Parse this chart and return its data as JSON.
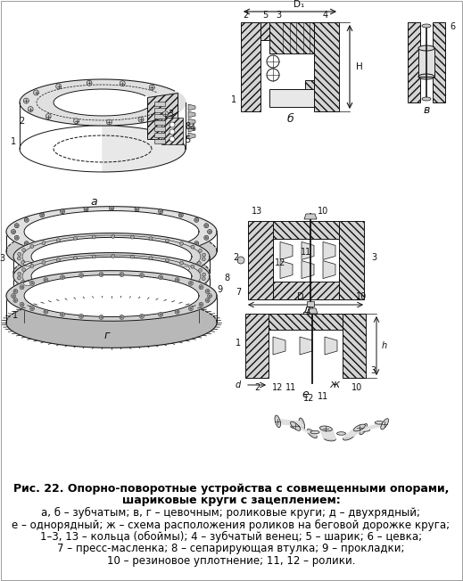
{
  "title_line1": "Рис. 22. Опорно-поворотные устройства с совмещенными опорами,",
  "title_line2": "шариковые круги с зацеплением:",
  "caption_lines": [
    "а, б – зубчатым; в, г – цевочным; роликовые круги; д – двухрядный;",
    "е – однорядный; ж – схема расположения роликов на беговой дорожке круга;",
    "1–3, 13 – кольца (обоймы); 4 – зубчатый венец; 5 – шарик; 6 – цевка;",
    "7 – пресс-масленка; 8 – сепарирующая втулка; 9 – прокладки;",
    "10 – резиновое уплотнение; 11, 12 – ролики."
  ],
  "bg_color": "#ffffff",
  "fig_width": 5.19,
  "fig_height": 6.52,
  "dpi": 100
}
